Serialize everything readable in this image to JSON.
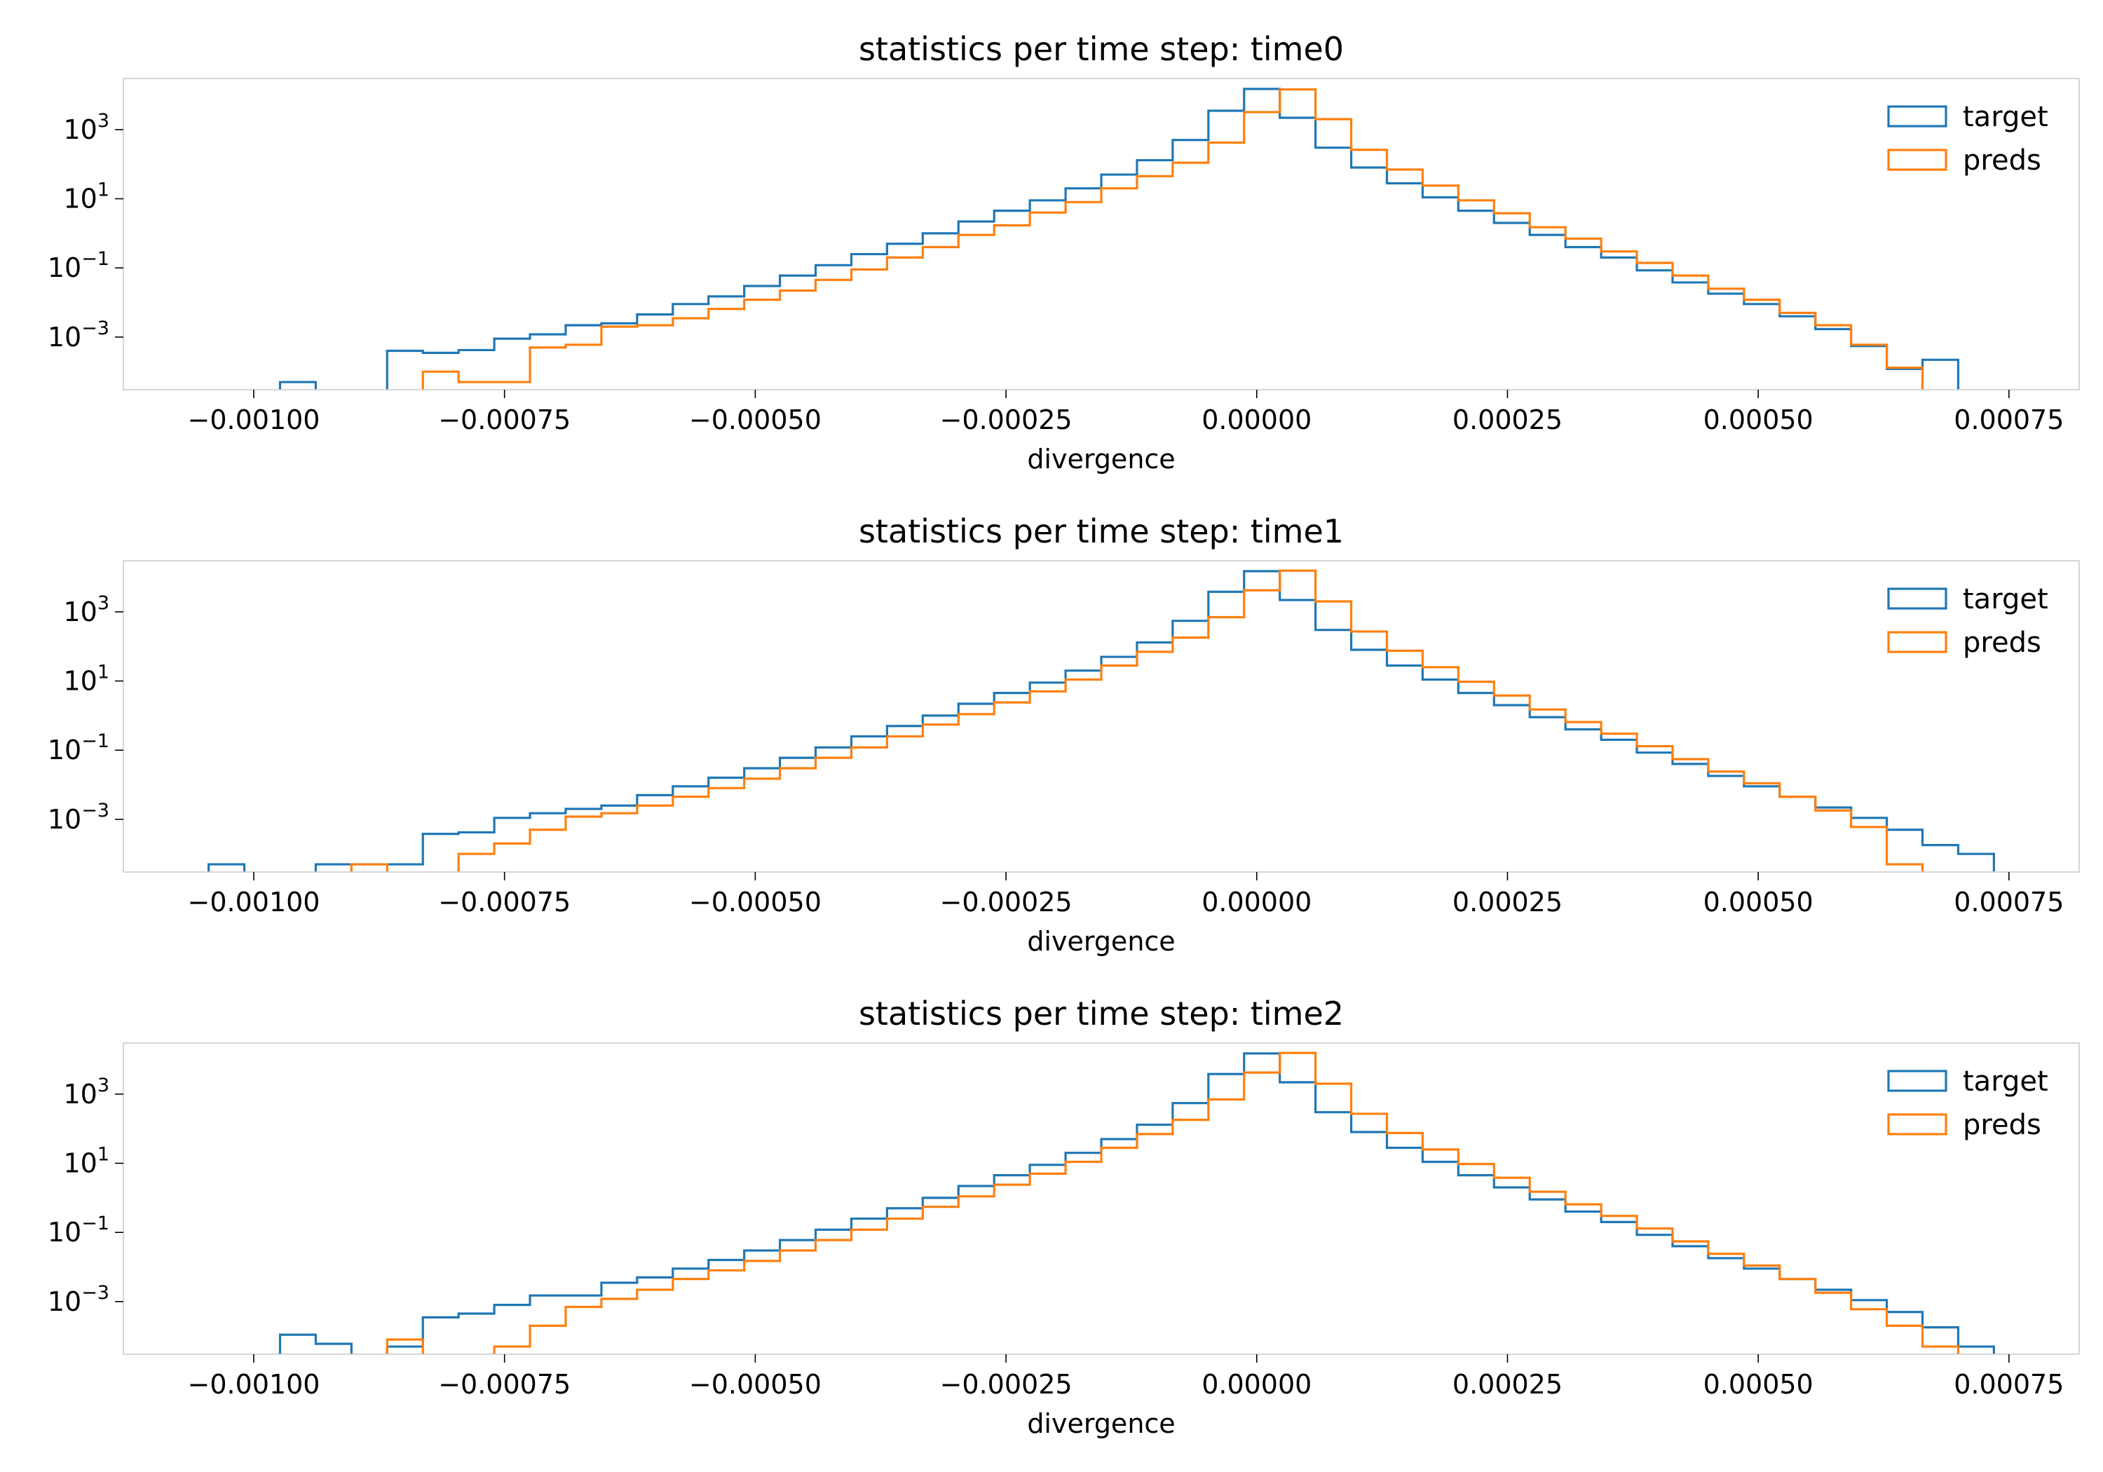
{
  "colors": {
    "target": "#1f77b4",
    "preds": "#ff7f0e",
    "frame": "#cccccc"
  },
  "chart_data": [
    {
      "type": "histogram",
      "title": "statistics per time step: time0",
      "xlabel": "divergence",
      "ylabel": "",
      "xscale": "linear",
      "yscale": "log",
      "xlim": [
        -0.00113,
        0.00082
      ],
      "ylim": [
        3e-05,
        30000
      ],
      "grid": false,
      "legend_position": "top-right",
      "x_ticks": [
        -0.001,
        -0.00075,
        -0.0005,
        -0.00025,
        0,
        0.00025,
        0.0005,
        0.00075
      ],
      "x_tick_labels": [
        "−0.00100",
        "−0.00075",
        "−0.00050",
        "−0.00025",
        "0.00000",
        "0.00025",
        "0.00050",
        "0.00075"
      ],
      "y_ticks": [
        0.001,
        0.1,
        10,
        1000
      ],
      "y_tick_labels": [
        {
          "base": "10",
          "exp": "−3"
        },
        {
          "base": "10",
          "exp": "−1"
        },
        {
          "base": "10",
          "exp": "1"
        },
        {
          "base": "10",
          "exp": "3"
        }
      ],
      "bin_start": -0.001045,
      "bin_width": 3.56e-05,
      "series": [
        {
          "name": "target",
          "color": "#1f77b4",
          "values": [
            0,
            0,
            5e-05,
            0,
            0,
            0.0004,
            0.00035,
            0.00042,
            0.0009,
            0.0012,
            0.0022,
            0.0025,
            0.0045,
            0.009,
            0.015,
            0.03,
            0.06,
            0.12,
            0.25,
            0.5,
            1.0,
            2.2,
            4.5,
            9,
            20,
            50,
            130,
            500,
            3500,
            15000,
            2200,
            300,
            80,
            28,
            11,
            4.5,
            2,
            0.9,
            0.4,
            0.2,
            0.085,
            0.038,
            0.018,
            0.009,
            0.004,
            0.0017,
            0.00055,
            0.00012,
            0.00022,
            0,
            0
          ],
          "line_values": null
        },
        {
          "name": "preds",
          "color": "#ff7f0e",
          "values": [
            0,
            0,
            0,
            0,
            0,
            0,
            0.0001,
            5e-05,
            5e-05,
            0.0005,
            0.0006,
            0.002,
            0.0022,
            0.0035,
            0.0065,
            0.012,
            0.022,
            0.045,
            0.09,
            0.2,
            0.4,
            0.9,
            1.7,
            4,
            8,
            20,
            45,
            110,
            420,
            3200,
            14500,
            2000,
            260,
            70,
            24,
            9,
            3.8,
            1.5,
            0.7,
            0.3,
            0.14,
            0.06,
            0.025,
            0.012,
            0.005,
            0.0022,
            0.0006,
            0.00013,
            0,
            0,
            0
          ]
        }
      ]
    },
    {
      "type": "histogram",
      "title": "statistics per time step: time1",
      "xlabel": "divergence",
      "ylabel": "",
      "xscale": "linear",
      "yscale": "log",
      "xlim": [
        -0.00113,
        0.00082
      ],
      "ylim": [
        3e-05,
        30000
      ],
      "grid": false,
      "legend_position": "top-right",
      "x_ticks": [
        -0.001,
        -0.00075,
        -0.0005,
        -0.00025,
        0,
        0.00025,
        0.0005,
        0.00075
      ],
      "x_tick_labels": [
        "−0.00100",
        "−0.00075",
        "−0.00050",
        "−0.00025",
        "0.00000",
        "0.00025",
        "0.00050",
        "0.00075"
      ],
      "y_ticks": [
        0.001,
        0.1,
        10,
        1000
      ],
      "y_tick_labels": [
        {
          "base": "10",
          "exp": "−3"
        },
        {
          "base": "10",
          "exp": "−1"
        },
        {
          "base": "10",
          "exp": "1"
        },
        {
          "base": "10",
          "exp": "3"
        }
      ],
      "bin_start": -0.001045,
      "bin_width": 3.56e-05,
      "series": [
        {
          "name": "target",
          "color": "#1f77b4",
          "values": [
            5e-05,
            0,
            0,
            5e-05,
            5e-05,
            5e-05,
            0.00038,
            0.00042,
            0.0011,
            0.0015,
            0.002,
            0.0025,
            0.005,
            0.009,
            0.016,
            0.03,
            0.06,
            0.12,
            0.25,
            0.5,
            1.0,
            2.2,
            4.5,
            9,
            20,
            50,
            130,
            550,
            3800,
            15000,
            2200,
            300,
            80,
            28,
            11,
            4.5,
            2,
            0.9,
            0.4,
            0.2,
            0.085,
            0.04,
            0.018,
            0.009,
            0.0045,
            0.0022,
            0.0011,
            0.0005,
            0.00018,
            0.0001,
            0
          ]
        },
        {
          "name": "preds",
          "color": "#ff7f0e",
          "values": [
            0,
            0,
            0,
            0,
            5e-05,
            0,
            0,
            0.0001,
            0.0002,
            0.0005,
            0.0012,
            0.0015,
            0.0025,
            0.0045,
            0.008,
            0.015,
            0.03,
            0.06,
            0.12,
            0.25,
            0.55,
            1.1,
            2.4,
            5,
            11,
            28,
            70,
            180,
            700,
            4200,
            15500,
            2000,
            270,
            75,
            25,
            9.5,
            3.8,
            1.5,
            0.65,
            0.3,
            0.13,
            0.055,
            0.024,
            0.011,
            0.0045,
            0.0018,
            0.0006,
            5e-05,
            0,
            0,
            0
          ]
        }
      ]
    },
    {
      "type": "histogram",
      "title": "statistics per time step: time2",
      "xlabel": "divergence",
      "ylabel": "",
      "xscale": "linear",
      "yscale": "log",
      "xlim": [
        -0.00113,
        0.00082
      ],
      "ylim": [
        3e-05,
        30000
      ],
      "grid": false,
      "legend_position": "top-right",
      "x_ticks": [
        -0.001,
        -0.00075,
        -0.0005,
        -0.00025,
        0,
        0.00025,
        0.0005,
        0.00075
      ],
      "x_tick_labels": [
        "−0.00100",
        "−0.00075",
        "−0.00050",
        "−0.00025",
        "0.00000",
        "0.00025",
        "0.00050",
        "0.00075"
      ],
      "y_ticks": [
        0.001,
        0.1,
        10,
        1000
      ],
      "y_tick_labels": [
        {
          "base": "10",
          "exp": "−3"
        },
        {
          "base": "10",
          "exp": "−1"
        },
        {
          "base": "10",
          "exp": "1"
        },
        {
          "base": "10",
          "exp": "3"
        }
      ],
      "bin_start": -0.001045,
      "bin_width": 3.56e-05,
      "series": [
        {
          "name": "target",
          "color": "#1f77b4",
          "values": [
            0,
            0,
            0.00011,
            6e-05,
            0,
            5e-05,
            0.00035,
            0.00045,
            0.0008,
            0.0015,
            0.0015,
            0.0035,
            0.005,
            0.009,
            0.016,
            0.03,
            0.06,
            0.12,
            0.25,
            0.5,
            1.0,
            2.2,
            4.5,
            9,
            20,
            50,
            130,
            550,
            3800,
            15000,
            2200,
            300,
            80,
            28,
            11,
            4.5,
            2,
            0.9,
            0.4,
            0.2,
            0.085,
            0.04,
            0.018,
            0.009,
            0.0045,
            0.0022,
            0.0011,
            0.0005,
            0.00018,
            5e-05,
            0
          ]
        },
        {
          "name": "preds",
          "color": "#ff7f0e",
          "values": [
            0,
            0,
            0,
            0,
            0,
            8e-05,
            0,
            0,
            5e-05,
            0.0002,
            0.0007,
            0.0012,
            0.0022,
            0.0045,
            0.008,
            0.015,
            0.03,
            0.06,
            0.12,
            0.25,
            0.55,
            1.1,
            2.4,
            5,
            11,
            28,
            70,
            180,
            700,
            4200,
            15500,
            2000,
            270,
            75,
            25,
            9.5,
            3.8,
            1.5,
            0.65,
            0.3,
            0.13,
            0.055,
            0.024,
            0.011,
            0.0045,
            0.0018,
            0.0006,
            0.0002,
            5e-05,
            0,
            0
          ]
        }
      ]
    }
  ]
}
